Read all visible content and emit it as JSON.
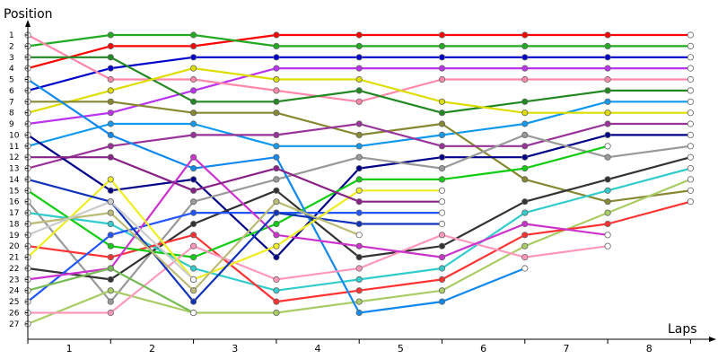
{
  "chart_data": {
    "type": "line",
    "ylabel": "Position",
    "xlabel": "Laps",
    "x_laps": [
      0,
      1,
      2,
      3,
      4,
      5,
      6,
      7,
      8,
      9
    ],
    "x_tick_labels": [
      "1",
      "2",
      "3",
      "4",
      "5",
      "6",
      "7",
      "8"
    ],
    "y_tick_labels": [
      "1",
      "2",
      "3",
      "4",
      "5",
      "6",
      "7",
      "8",
      "9",
      "10",
      "11",
      "12",
      "13",
      "14",
      "15",
      "16",
      "17",
      "18",
      "19",
      "20",
      "21",
      "22",
      "23",
      "24",
      "25",
      "26",
      "27"
    ],
    "yrange": [
      1,
      27
    ],
    "y_inverted": true,
    "grid": false,
    "series": [
      {
        "color": "#ff0000",
        "positions": [
          4,
          2,
          2,
          1,
          1,
          1,
          1,
          1,
          1
        ]
      },
      {
        "color": "#22aa22",
        "positions": [
          2,
          1,
          1,
          2,
          2,
          2,
          2,
          2,
          2
        ]
      },
      {
        "color": "#0000cc",
        "positions": [
          6,
          4,
          3,
          3,
          3,
          3,
          3,
          3,
          3
        ]
      },
      {
        "color": "#bb33ee",
        "positions": [
          9,
          8,
          6,
          4,
          4,
          4,
          4,
          4,
          4
        ]
      },
      {
        "color": "#ff88aa",
        "positions": [
          1,
          5,
          5,
          6,
          7,
          5,
          5,
          5,
          5
        ]
      },
      {
        "color": "#228822",
        "positions": [
          3,
          3,
          7,
          7,
          6,
          8,
          7,
          6,
          6
        ]
      },
      {
        "color": "#1199ee",
        "positions": [
          11,
          9,
          9,
          11,
          11,
          10,
          9,
          7,
          7
        ]
      },
      {
        "color": "#dddd00",
        "positions": [
          8,
          6,
          4,
          5,
          5,
          7,
          8,
          8,
          8
        ]
      },
      {
        "color": "#888833",
        "positions": [
          7,
          7,
          8,
          8,
          10,
          9,
          14,
          16,
          15
        ]
      },
      {
        "color": "#993399",
        "positions": [
          13,
          11,
          10,
          10,
          9,
          11,
          11,
          9,
          9
        ]
      },
      {
        "color": "#000088",
        "positions": [
          10,
          15,
          14,
          21,
          13,
          12,
          12,
          10,
          10
        ]
      },
      {
        "color": "#999999",
        "positions": [
          16,
          25,
          16,
          14,
          12,
          13,
          10,
          12,
          11
        ]
      },
      {
        "color": "#333333",
        "positions": [
          22,
          23,
          18,
          15,
          21,
          20,
          16,
          14,
          12
        ]
      },
      {
        "color": "#33cccc",
        "positions": [
          17,
          18,
          22,
          24,
          23,
          22,
          17,
          15,
          13
        ]
      },
      {
        "color": "#aacc66",
        "positions": [
          27,
          24,
          26,
          26,
          25,
          24,
          20,
          17,
          14
        ]
      },
      {
        "color": "#ff3333",
        "positions": [
          20,
          21,
          19,
          25,
          24,
          23,
          19,
          18,
          16
        ]
      },
      {
        "color": "#11cc11",
        "positions": [
          15,
          20,
          21,
          18,
          14,
          14,
          13,
          11
        ]
      },
      {
        "color": "#2255ff",
        "positions": [
          25,
          19,
          17,
          17,
          17,
          17
        ]
      },
      {
        "color": "#1188ee",
        "positions": [
          5,
          10,
          13,
          12,
          26,
          25,
          22
        ]
      },
      {
        "color": "#ff99bb",
        "positions": [
          26,
          26,
          20,
          23,
          22,
          19,
          21,
          20
        ]
      },
      {
        "color": "#cc33cc",
        "positions": [
          23,
          22,
          12,
          19,
          20,
          21,
          18,
          19
        ]
      },
      {
        "color": "#eeee22",
        "positions": [
          21,
          14,
          23,
          20,
          15,
          15
        ]
      },
      {
        "color": "#1133bb",
        "positions": [
          14,
          16,
          25,
          17,
          18,
          18
        ]
      },
      {
        "color": "#882288",
        "positions": [
          12,
          12,
          15,
          13,
          16,
          16
        ]
      },
      {
        "color": "#bbbb77",
        "positions": [
          18,
          17,
          24,
          16,
          19
        ]
      },
      {
        "color": "#77bb55",
        "positions": [
          24,
          22,
          26
        ]
      },
      {
        "color": "#cccccc",
        "positions": [
          19,
          16,
          23
        ]
      }
    ]
  }
}
